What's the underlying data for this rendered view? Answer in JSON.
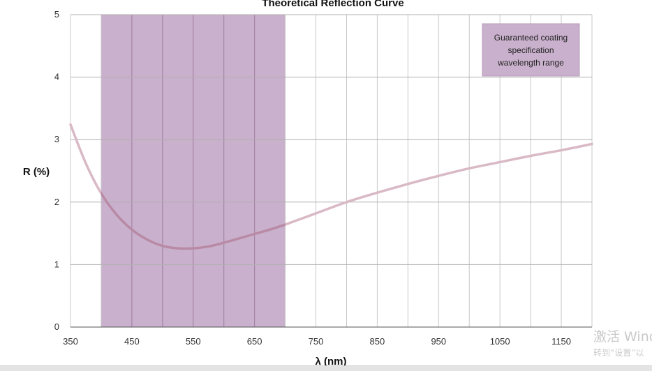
{
  "chart_data": {
    "type": "line",
    "title": "Theoretical Reflection Curve",
    "xlabel": "λ (nm)",
    "ylabel": "R (%)",
    "xlim": [
      350,
      1200
    ],
    "ylim": [
      0,
      5
    ],
    "x_ticks": [
      350,
      450,
      550,
      650,
      750,
      850,
      950,
      1050,
      1150
    ],
    "y_ticks": [
      0,
      1,
      2,
      3,
      4,
      5
    ],
    "grid": true,
    "x_grid_step": 50,
    "legend": {
      "text": "Guaranteed coating specification wavelength range",
      "placement": "top-right"
    },
    "highlight_band": {
      "x_start": 400,
      "x_end": 700,
      "label": "Guaranteed coating specification wavelength range",
      "color": "#c9b0cc"
    },
    "series": [
      {
        "color": "#d9b9c6",
        "in_band_color": "#b88aa6",
        "x": [
          350,
          375,
          400,
          425,
          450,
          475,
          500,
          525,
          550,
          575,
          600,
          625,
          650,
          675,
          700,
          750,
          800,
          850,
          900,
          950,
          1000,
          1050,
          1100,
          1150,
          1200
        ],
        "y": [
          3.24,
          2.62,
          2.14,
          1.8,
          1.56,
          1.4,
          1.3,
          1.26,
          1.26,
          1.29,
          1.35,
          1.42,
          1.49,
          1.56,
          1.64,
          1.82,
          2.0,
          2.15,
          2.29,
          2.42,
          2.54,
          2.64,
          2.74,
          2.83,
          2.93
        ]
      }
    ]
  },
  "watermark": {
    "line1": "激活 Wind",
    "line2": "转到“设置”以"
  }
}
